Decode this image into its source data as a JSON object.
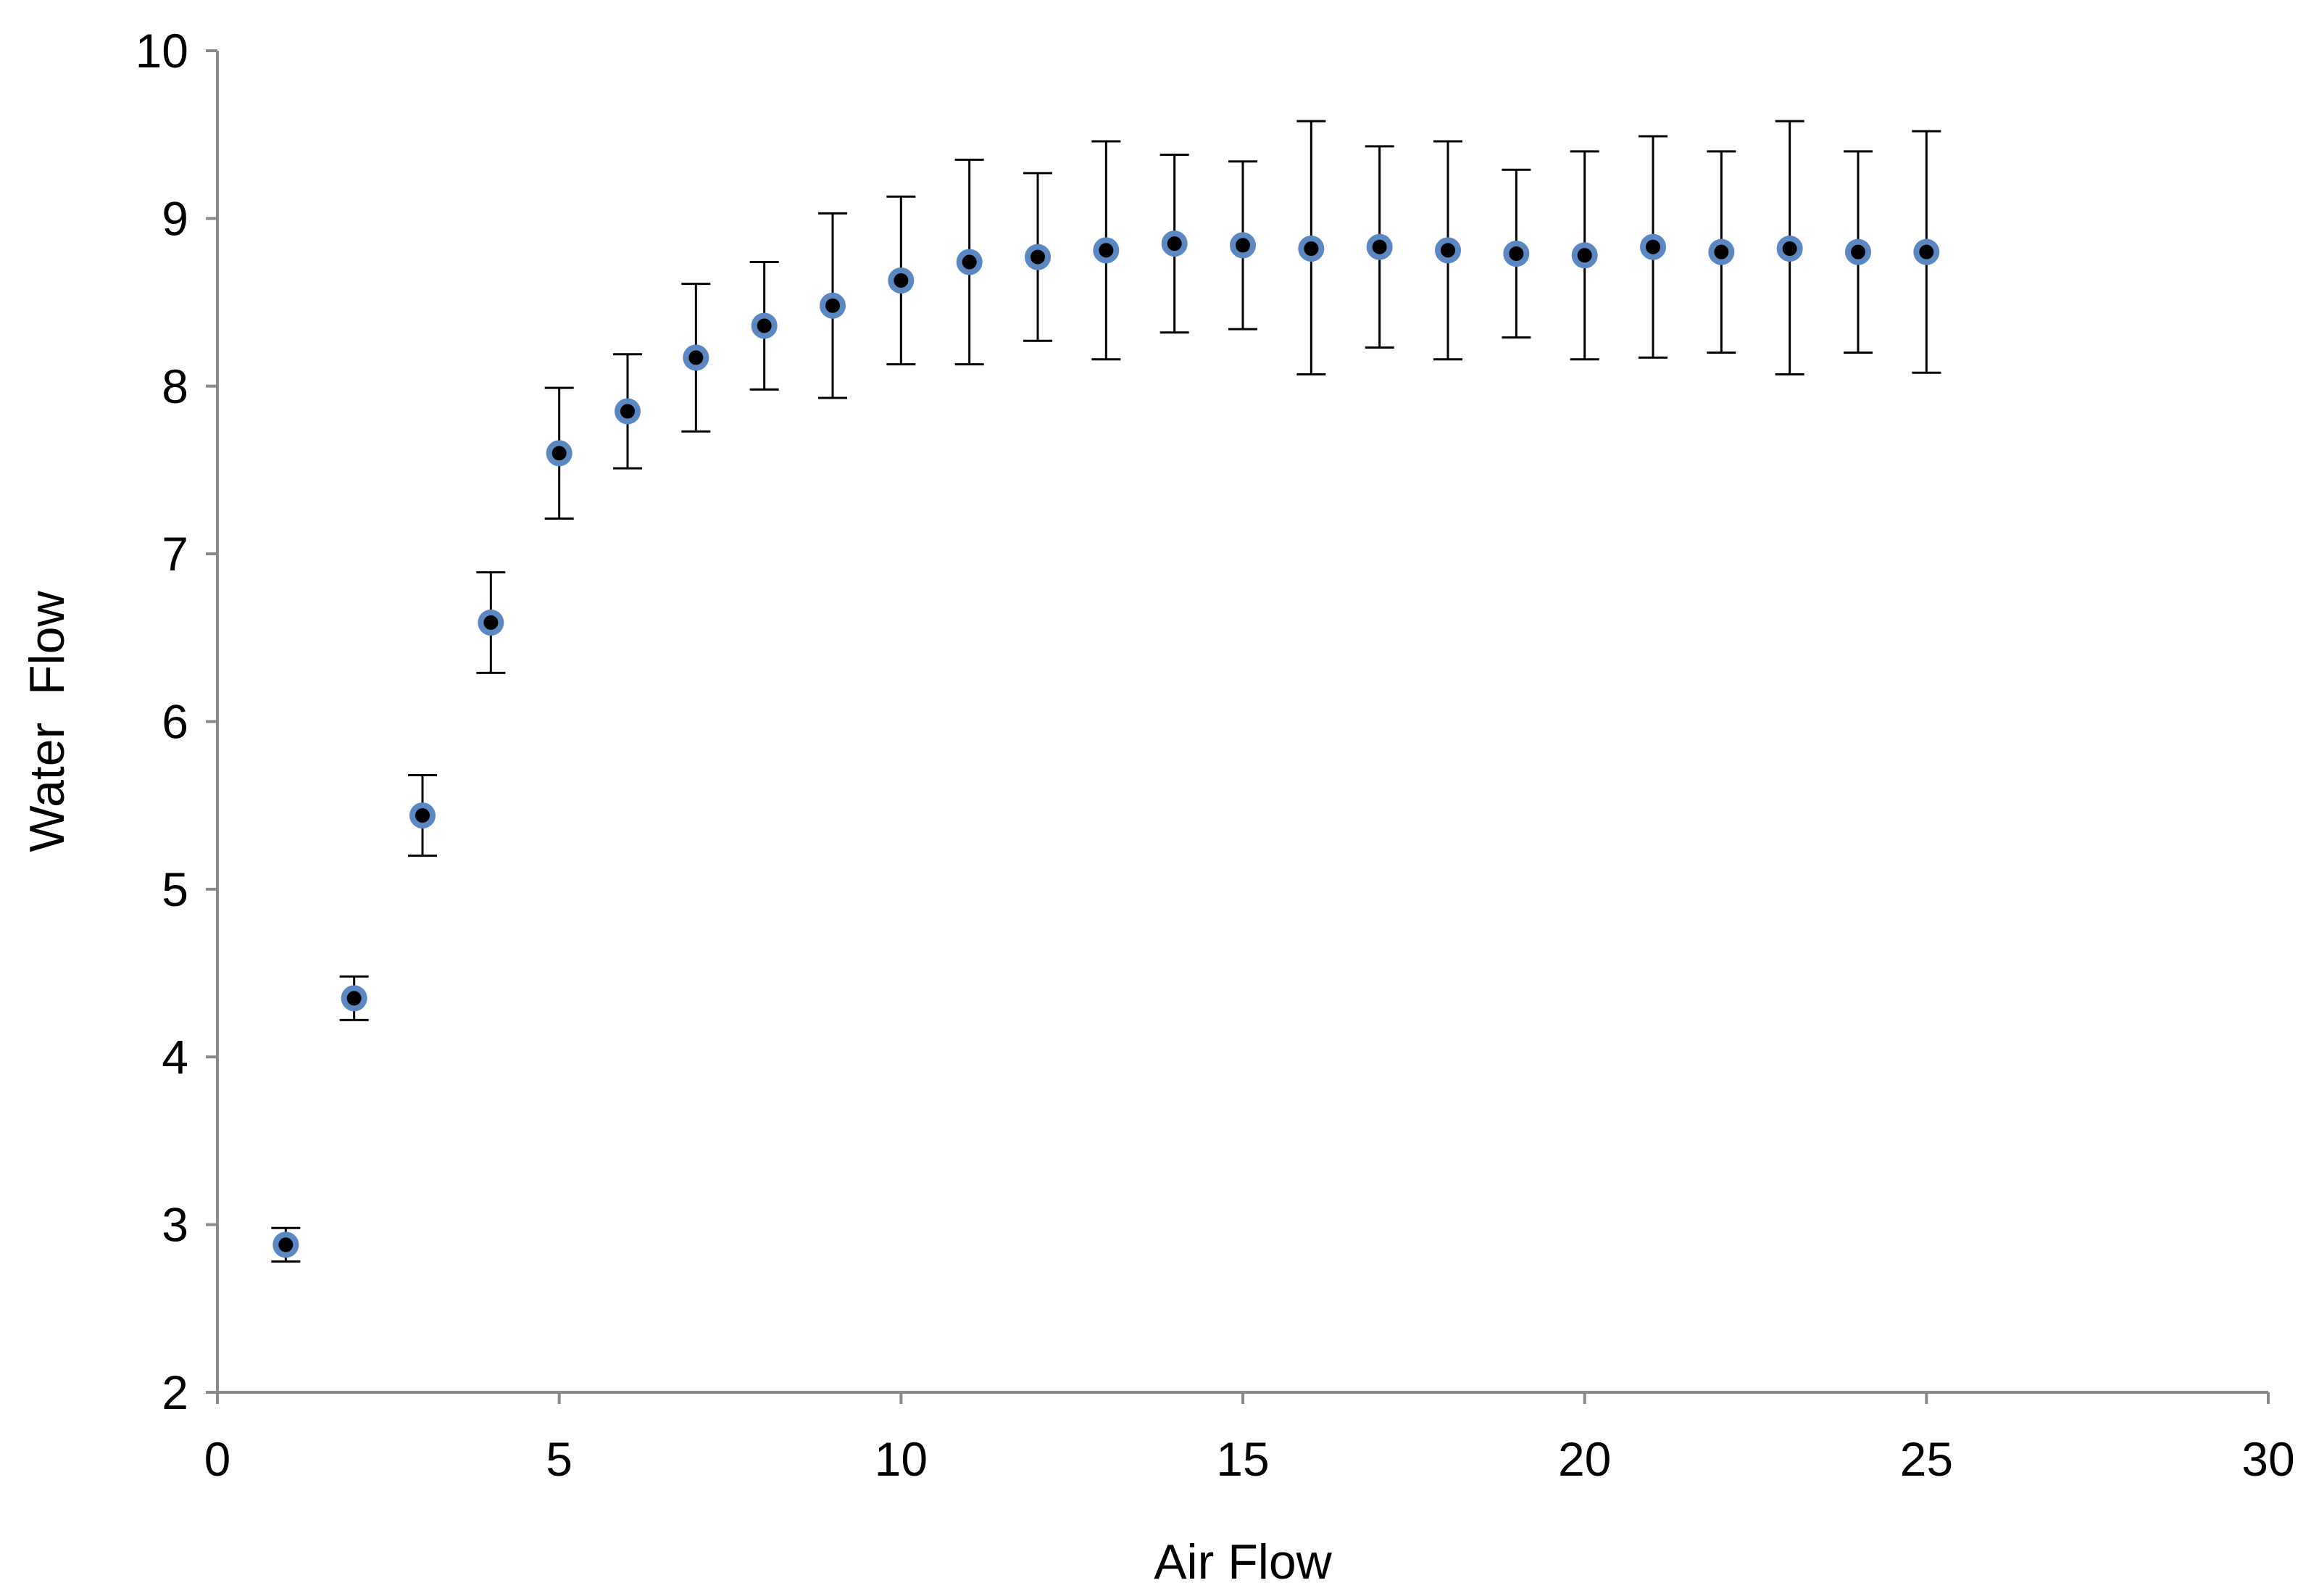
{
  "chart_data": {
    "type": "scatter",
    "title": "",
    "xlabel": "Air Flow",
    "ylabel": "Water  Flow",
    "xlim": [
      0,
      30
    ],
    "ylim": [
      2,
      10
    ],
    "x_ticks": [
      0,
      5,
      10,
      15,
      20,
      25,
      30
    ],
    "y_ticks": [
      2,
      3,
      4,
      5,
      6,
      7,
      8,
      9,
      10
    ],
    "grid": false,
    "legend": "none",
    "colors": {
      "marker_fill": "#000000",
      "marker_edge": "#5b87c2",
      "error_bar": "#000000",
      "axis": "#8a8a8a"
    },
    "series": [
      {
        "x": [
          1,
          2,
          3,
          4,
          5,
          6,
          7,
          8,
          9,
          10,
          11,
          12,
          13,
          14,
          15,
          16,
          17,
          18,
          19,
          20,
          21,
          22,
          23,
          24,
          25
        ],
        "y": [
          2.88,
          4.35,
          5.44,
          6.59,
          7.6,
          7.85,
          8.17,
          8.36,
          8.48,
          8.63,
          8.74,
          8.77,
          8.81,
          8.85,
          8.84,
          8.82,
          8.83,
          8.81,
          8.79,
          8.78,
          8.83,
          8.8,
          8.82,
          8.8,
          8.8
        ],
        "y_upper": [
          2.98,
          4.48,
          5.68,
          6.89,
          7.99,
          8.19,
          8.61,
          8.74,
          9.03,
          9.13,
          9.35,
          9.27,
          9.46,
          9.38,
          9.34,
          9.58,
          9.43,
          9.46,
          9.29,
          9.4,
          9.49,
          9.4,
          9.58,
          9.4,
          9.52
        ],
        "y_lower": [
          2.78,
          4.22,
          5.2,
          6.29,
          7.21,
          7.51,
          7.73,
          7.98,
          7.93,
          8.13,
          8.13,
          8.27,
          8.16,
          8.32,
          8.34,
          8.07,
          8.23,
          8.16,
          8.29,
          8.16,
          8.17,
          8.2,
          8.07,
          8.2,
          8.08
        ]
      }
    ]
  }
}
